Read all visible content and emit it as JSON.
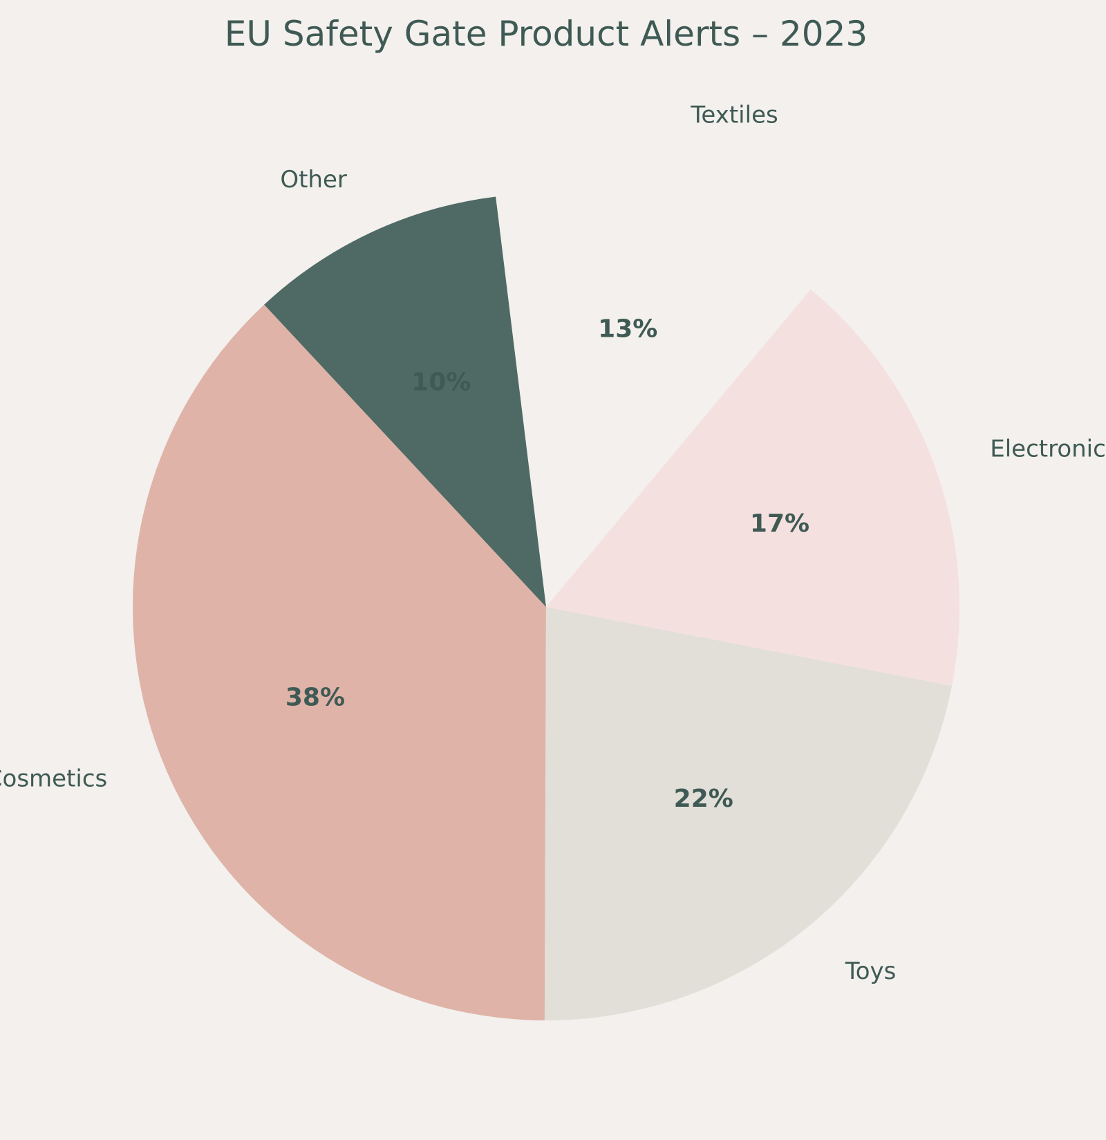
{
  "chart_data": {
    "type": "pie",
    "title": "EU Safety Gate Product Alerts – 2023",
    "slices": [
      {
        "label": "Cosmetics",
        "value": 38,
        "value_label": "38%",
        "color": "#dfb3a8",
        "exploded": false
      },
      {
        "label": "Toys",
        "value": 22,
        "value_label": "22%",
        "color": "#e2dfd8",
        "exploded": false
      },
      {
        "label": "Electronics",
        "value": 17,
        "value_label": "17%",
        "color": "#f5e0e0",
        "exploded": false
      },
      {
        "label": "Textiles",
        "value": 13,
        "value_label": "13%",
        "color": "#f3f0ed",
        "exploded": true
      },
      {
        "label": "Other",
        "value": 10,
        "value_label": "10%",
        "color": "#4f6a64",
        "exploded": false
      }
    ],
    "start_angle_deg": 133,
    "direction": "counterclockwise"
  },
  "colors": {
    "background": "#f3f0ed",
    "text": "#3f5a54"
  }
}
